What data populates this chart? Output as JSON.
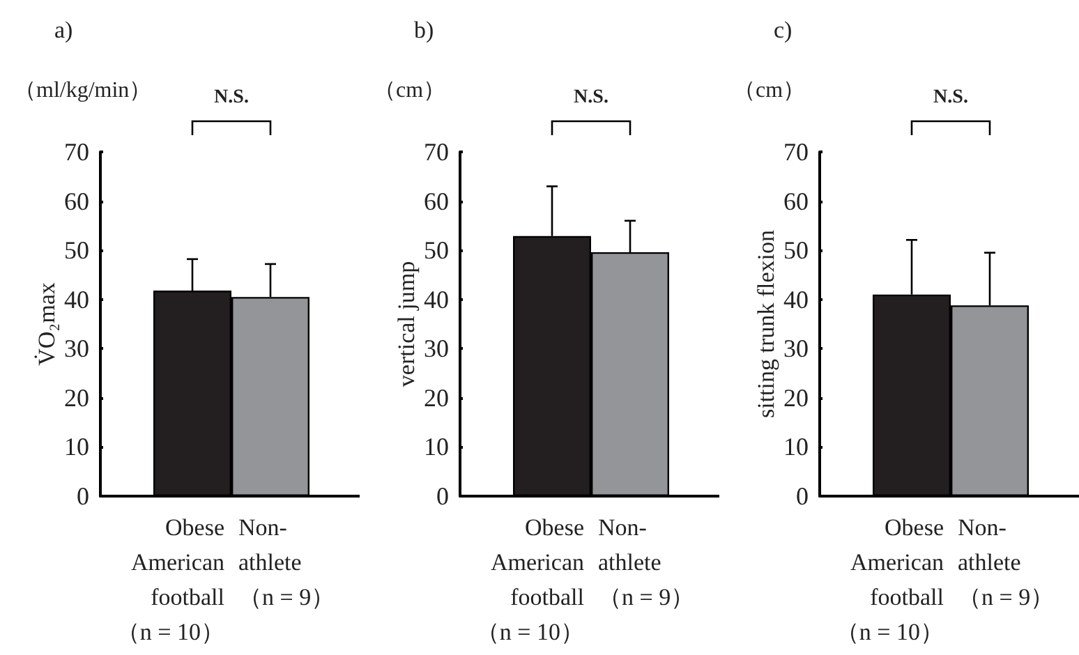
{
  "chart_data": [
    {
      "type": "bar",
      "title": "a)",
      "ylabel": "V̇O₂max",
      "annotations": [
        "（ml/kg/min）",
        "N.S."
      ],
      "categories": [
        "Obese\nAmerican\nfootball\n（n = 10）",
        "Non-\nathlete\n（n = 9）"
      ],
      "values": [
        41.8,
        40.5
      ],
      "colors": [
        "#231f20",
        "#939598"
      ],
      "errors": [
        [
          41.8,
          48.2
        ],
        [
          40.5,
          47.2
        ]
      ],
      "ylim": [
        0,
        70
      ],
      "yticks": [
        0,
        10,
        20,
        30,
        40,
        50,
        60,
        70
      ]
    },
    {
      "type": "bar",
      "title": "b)",
      "ylabel": "vertical jump",
      "annotations": [
        "（cm）",
        "N.S."
      ],
      "categories": [
        "Obese\nAmerican\nfootball\n（n = 10）",
        "Non-\nathlete\n（n = 9）"
      ],
      "values": [
        52.9,
        49.6
      ],
      "colors": [
        "#231f20",
        "#939598"
      ],
      "errors": [
        [
          52.9,
          63.0
        ],
        [
          49.6,
          56.0
        ]
      ],
      "ylim": [
        0,
        70
      ],
      "yticks": [
        0,
        10,
        20,
        30,
        40,
        50,
        60,
        70
      ]
    },
    {
      "type": "bar",
      "title": "c)",
      "ylabel": "sitting trunk flexion",
      "annotations": [
        "（cm）",
        "N.S."
      ],
      "categories": [
        "Obese\nAmerican\nfootball\n（n = 10）",
        "Non-\nathlete\n（n = 9）"
      ],
      "values": [
        41.0,
        38.8
      ],
      "colors": [
        "#231f20",
        "#939598"
      ],
      "errors": [
        [
          41.0,
          52.1
        ],
        [
          38.8,
          49.5
        ]
      ],
      "ylim": [
        0,
        70
      ],
      "yticks": [
        0,
        10,
        20,
        30,
        40,
        50,
        60,
        70
      ]
    }
  ]
}
